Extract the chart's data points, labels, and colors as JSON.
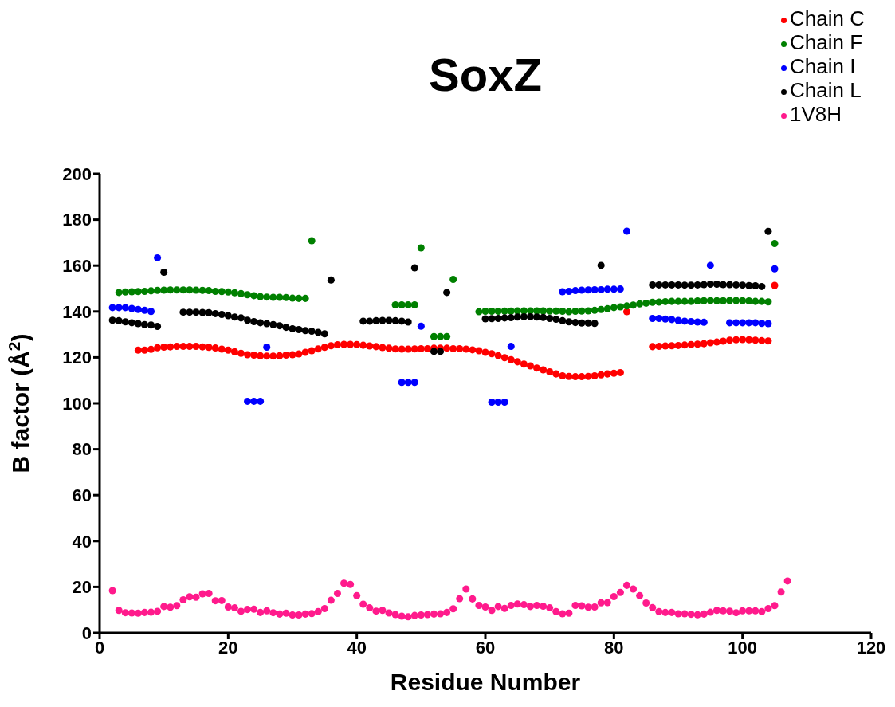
{
  "chart_data": {
    "type": "scatter",
    "title": "SoxZ",
    "xlabel": "Residue Number",
    "ylabel": "B factor (Å$^{2}$)",
    "xlim": [
      0,
      120
    ],
    "xticks": [
      0,
      20,
      40,
      60,
      80,
      100,
      120
    ],
    "ylim": [
      0,
      200
    ],
    "yticks": [
      0,
      20,
      40,
      60,
      80,
      100,
      120,
      140,
      160,
      180,
      200
    ],
    "legend": "top right",
    "marker": "circle",
    "series": [
      {
        "name": "Chain C",
        "color": "#ff0000",
        "x": [
          6,
          7,
          8,
          9,
          10,
          11,
          12,
          13,
          14,
          15,
          16,
          17,
          18,
          19,
          20,
          21,
          22,
          23,
          24,
          25,
          26,
          27,
          28,
          29,
          30,
          31,
          32,
          33,
          34,
          35,
          36,
          37,
          38,
          39,
          40,
          41,
          42,
          43,
          44,
          45,
          46,
          47,
          48,
          49,
          50,
          51,
          52,
          53,
          54,
          55,
          56,
          57,
          58,
          59,
          60,
          61,
          62,
          63,
          64,
          65,
          66,
          67,
          68,
          69,
          70,
          71,
          72,
          73,
          74,
          75,
          76,
          77,
          78,
          79,
          80,
          81,
          82,
          86,
          87,
          88,
          89,
          90,
          91,
          92,
          93,
          94,
          95,
          96,
          97,
          98,
          99,
          100,
          101,
          102,
          103,
          104,
          105
        ],
        "values": [
          123.2,
          123.2,
          123.5,
          124.2,
          124.5,
          124.6,
          124.8,
          124.8,
          124.8,
          124.8,
          124.6,
          124.4,
          124.1,
          123.6,
          123.2,
          122.5,
          121.8,
          121.2,
          121.0,
          120.7,
          120.6,
          120.6,
          120.7,
          121.0,
          121.2,
          121.5,
          122.2,
          122.9,
          123.7,
          124.4,
          125.1,
          125.5,
          125.7,
          125.7,
          125.6,
          125.3,
          125.0,
          124.7,
          124.3,
          124.0,
          123.7,
          123.6,
          123.6,
          123.7,
          123.8,
          123.8,
          124.0,
          124.0,
          124.0,
          123.8,
          123.8,
          123.6,
          123.3,
          122.9,
          122.2,
          121.6,
          120.8,
          119.9,
          119.0,
          118.1,
          117.1,
          116.3,
          115.4,
          114.6,
          113.7,
          112.8,
          112.0,
          111.7,
          111.6,
          111.6,
          111.7,
          112.0,
          112.4,
          112.8,
          113.1,
          113.4,
          139.9,
          124.7,
          124.8,
          125.0,
          125.1,
          125.2,
          125.4,
          125.6,
          125.8,
          126.0,
          126.4,
          126.7,
          127.1,
          127.5,
          127.7,
          127.8,
          127.7,
          127.5,
          127.3,
          127.2,
          151.4
        ]
      },
      {
        "name": "Chain F",
        "color": "#008000",
        "x": [
          3,
          4,
          5,
          6,
          7,
          8,
          9,
          10,
          11,
          12,
          13,
          14,
          15,
          16,
          17,
          18,
          19,
          20,
          21,
          22,
          23,
          24,
          25,
          26,
          27,
          28,
          29,
          30,
          31,
          32,
          33,
          46,
          47,
          48,
          49,
          50,
          52,
          53,
          54,
          55,
          59,
          60,
          61,
          62,
          63,
          64,
          65,
          66,
          67,
          68,
          69,
          70,
          71,
          72,
          73,
          74,
          75,
          76,
          77,
          78,
          79,
          80,
          81,
          82,
          83,
          84,
          85,
          86,
          87,
          88,
          89,
          90,
          91,
          92,
          93,
          94,
          95,
          96,
          97,
          98,
          99,
          100,
          101,
          102,
          103,
          104,
          105
        ],
        "values": [
          148.3,
          148.5,
          148.6,
          148.7,
          148.8,
          149.0,
          149.2,
          149.3,
          149.4,
          149.4,
          149.4,
          149.4,
          149.3,
          149.2,
          149.1,
          148.8,
          148.7,
          148.5,
          148.2,
          147.8,
          147.3,
          146.9,
          146.5,
          146.3,
          146.2,
          146.2,
          146.1,
          145.8,
          145.7,
          145.7,
          170.8,
          142.9,
          142.9,
          142.9,
          142.9,
          167.7,
          129.1,
          129.1,
          129.1,
          154.0,
          139.9,
          140.1,
          140.1,
          140.1,
          140.2,
          140.2,
          140.3,
          140.3,
          140.3,
          140.3,
          140.3,
          140.2,
          140.2,
          140.1,
          139.9,
          140.1,
          140.2,
          140.3,
          140.5,
          140.9,
          141.2,
          141.7,
          142.0,
          142.4,
          142.8,
          143.3,
          143.6,
          144.0,
          144.1,
          144.3,
          144.4,
          144.4,
          144.4,
          144.4,
          144.6,
          144.7,
          144.8,
          144.7,
          144.7,
          144.8,
          144.8,
          144.7,
          144.6,
          144.4,
          144.4,
          144.2,
          169.6
        ]
      },
      {
        "name": "Chain I",
        "color": "#0000ff",
        "x": [
          2,
          3,
          4,
          5,
          6,
          7,
          8,
          9,
          23,
          24,
          25,
          26,
          47,
          48,
          49,
          50,
          61,
          62,
          63,
          64,
          72,
          73,
          74,
          75,
          76,
          77,
          78,
          79,
          80,
          81,
          82,
          86,
          87,
          88,
          89,
          90,
          91,
          92,
          93,
          94,
          95,
          98,
          99,
          100,
          101,
          102,
          103,
          104,
          105
        ],
        "values": [
          141.7,
          141.7,
          141.7,
          141.3,
          140.9,
          140.5,
          140.0,
          163.4,
          100.9,
          100.9,
          100.9,
          124.5,
          109.1,
          109.1,
          109.1,
          133.6,
          100.5,
          100.5,
          100.5,
          124.8,
          148.6,
          148.8,
          149.1,
          149.3,
          149.4,
          149.5,
          149.5,
          149.7,
          149.7,
          149.8,
          175.0,
          137.0,
          137.0,
          136.7,
          136.5,
          136.1,
          135.8,
          135.6,
          135.4,
          135.3,
          160.1,
          135.1,
          135.1,
          135.1,
          135.1,
          135.1,
          134.8,
          134.7,
          158.6
        ]
      },
      {
        "name": "Chain L",
        "color": "#000000",
        "x": [
          2,
          3,
          4,
          5,
          6,
          7,
          8,
          9,
          10,
          13,
          14,
          15,
          16,
          17,
          18,
          19,
          20,
          21,
          22,
          23,
          24,
          25,
          26,
          27,
          28,
          29,
          30,
          31,
          32,
          33,
          34,
          35,
          36,
          41,
          42,
          43,
          44,
          45,
          46,
          47,
          48,
          49,
          52,
          53,
          54,
          60,
          61,
          62,
          63,
          64,
          65,
          66,
          67,
          68,
          69,
          70,
          71,
          72,
          73,
          74,
          75,
          76,
          77,
          78,
          86,
          87,
          88,
          89,
          90,
          91,
          92,
          93,
          94,
          95,
          96,
          97,
          98,
          99,
          100,
          101,
          102,
          103,
          104
        ],
        "values": [
          136.2,
          136.0,
          135.5,
          135.1,
          134.7,
          134.3,
          134.1,
          133.5,
          157.1,
          139.7,
          139.7,
          139.7,
          139.6,
          139.5,
          139.1,
          138.7,
          138.2,
          137.6,
          137.2,
          136.2,
          135.6,
          135.1,
          134.7,
          134.3,
          133.8,
          133.1,
          132.5,
          132.1,
          131.7,
          131.4,
          130.9,
          130.3,
          153.7,
          135.8,
          135.8,
          136.0,
          136.1,
          136.1,
          136.0,
          135.8,
          135.4,
          159.0,
          122.6,
          122.6,
          148.3,
          136.8,
          136.9,
          137.0,
          137.2,
          137.3,
          137.6,
          137.7,
          137.7,
          137.6,
          137.4,
          137.0,
          136.6,
          136.0,
          135.5,
          135.2,
          135.0,
          135.0,
          134.8,
          160.1,
          151.6,
          151.6,
          151.6,
          151.6,
          151.6,
          151.5,
          151.5,
          151.6,
          151.7,
          151.9,
          151.9,
          151.7,
          151.7,
          151.6,
          151.5,
          151.3,
          151.2,
          150.9,
          174.9
        ]
      },
      {
        "name": "1V8H",
        "color": "#ff1a8c",
        "x": [
          2,
          3,
          4,
          5,
          6,
          7,
          8,
          9,
          10,
          11,
          12,
          13,
          14,
          15,
          16,
          17,
          18,
          19,
          20,
          21,
          22,
          23,
          24,
          25,
          26,
          27,
          28,
          29,
          30,
          31,
          32,
          33,
          34,
          35,
          36,
          37,
          38,
          39,
          40,
          41,
          42,
          43,
          44,
          45,
          46,
          47,
          48,
          49,
          50,
          51,
          52,
          53,
          54,
          55,
          56,
          57,
          58,
          59,
          60,
          61,
          62,
          63,
          64,
          65,
          66,
          67,
          68,
          69,
          70,
          71,
          72,
          73,
          74,
          75,
          76,
          77,
          78,
          79,
          80,
          81,
          82,
          83,
          84,
          85,
          86,
          87,
          88,
          89,
          90,
          91,
          92,
          93,
          94,
          95,
          96,
          97,
          98,
          99,
          100,
          101,
          102,
          103,
          104,
          105,
          106,
          107
        ],
        "values": [
          18.4,
          9.8,
          8.8,
          8.7,
          8.6,
          8.9,
          9.0,
          9.4,
          11.5,
          11.2,
          11.9,
          14.4,
          15.7,
          15.5,
          17.0,
          17.2,
          14.0,
          14.1,
          11.3,
          10.9,
          9.4,
          10.2,
          10.3,
          8.9,
          9.6,
          8.8,
          8.2,
          8.6,
          7.8,
          7.8,
          8.2,
          8.4,
          9.3,
          10.6,
          14.2,
          17.2,
          21.6,
          21.1,
          16.2,
          12.5,
          10.9,
          9.5,
          9.8,
          8.7,
          8.0,
          7.3,
          7.0,
          7.6,
          7.8,
          8.0,
          8.2,
          8.3,
          8.9,
          10.5,
          14.9,
          19.1,
          14.8,
          12.0,
          11.3,
          9.8,
          11.5,
          10.7,
          12.0,
          12.6,
          12.3,
          11.5,
          12.0,
          11.6,
          10.9,
          9.3,
          8.3,
          8.6,
          12.0,
          11.8,
          11.2,
          11.3,
          13.1,
          13.2,
          15.8,
          17.6,
          20.7,
          19.1,
          16.2,
          13.0,
          11.0,
          9.3,
          8.9,
          8.9,
          8.3,
          8.3,
          8.1,
          7.9,
          8.2,
          9.0,
          9.8,
          9.6,
          9.5,
          8.8,
          9.6,
          9.6,
          9.6,
          9.3,
          10.6,
          11.9,
          17.8,
          22.6
        ]
      }
    ]
  }
}
